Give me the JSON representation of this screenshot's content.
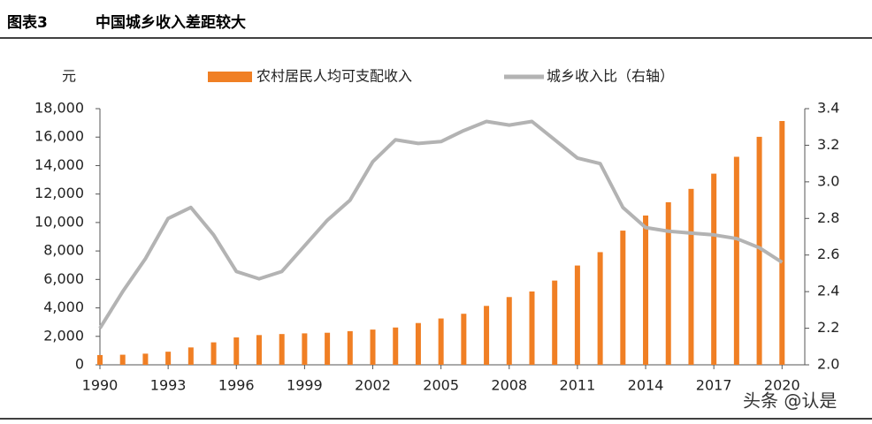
{
  "header": {
    "label": "图表3",
    "title": "中国城乡收入差距较大"
  },
  "watermark": "头条 @认是",
  "chart_data": {
    "type": "bar_line",
    "y_unit": "元",
    "x": [
      1990,
      1991,
      1992,
      1993,
      1994,
      1995,
      1996,
      1997,
      1998,
      1999,
      2000,
      2001,
      2002,
      2003,
      2004,
      2005,
      2006,
      2007,
      2008,
      2009,
      2010,
      2011,
      2012,
      2013,
      2014,
      2015,
      2016,
      2017,
      2018,
      2019,
      2020
    ],
    "xlim": [
      1990,
      2021
    ],
    "xticks": [
      1990,
      1993,
      1996,
      1999,
      2002,
      2005,
      2008,
      2011,
      2014,
      2017,
      2020
    ],
    "series": [
      {
        "name": "农村居民人均可支配收入",
        "color": "#f07f24",
        "kind": "bar",
        "values": [
          686,
          709,
          784,
          922,
          1221,
          1578,
          1926,
          2090,
          2162,
          2210,
          2253,
          2366,
          2476,
          2622,
          2936,
          3255,
          3587,
          4140,
          4761,
          5153,
          5919,
          6977,
          7917,
          9430,
          10489,
          11422,
          12363,
          13432,
          14617,
          16021,
          17131
        ]
      },
      {
        "name": "城乡收入比（右轴）",
        "color": "#b3b3b3",
        "kind": "line",
        "axis": "y2",
        "values": [
          2.2,
          2.4,
          2.58,
          2.8,
          2.86,
          2.71,
          2.51,
          2.47,
          2.51,
          2.65,
          2.79,
          2.9,
          3.11,
          3.23,
          3.21,
          3.22,
          3.28,
          3.33,
          3.31,
          3.33,
          3.23,
          3.13,
          3.1,
          2.86,
          2.75,
          2.73,
          2.72,
          2.71,
          2.69,
          2.64,
          2.56
        ]
      }
    ],
    "ylim": [
      0,
      18000
    ],
    "yticks": [
      0,
      {
        "value": 2000,
        "label": "2,000"
      },
      {
        "value": 4000,
        "label": "4,000"
      },
      {
        "value": 6000,
        "label": "6,000"
      },
      {
        "value": 8000,
        "label": "8,000"
      },
      {
        "value": 10000,
        "label": "10,000"
      },
      {
        "value": 12000,
        "label": "12,000"
      },
      {
        "value": 14000,
        "label": "14,000"
      },
      {
        "value": 16000,
        "label": "16,000"
      },
      {
        "value": 18000,
        "label": "18,000"
      }
    ],
    "y2lim": [
      2,
      3.4
    ],
    "y2ticks": [
      {
        "value": 2,
        "label": "2.0"
      },
      {
        "value": 2.2,
        "label": "2.2"
      },
      {
        "value": 2.4,
        "label": "2.4"
      },
      {
        "value": 2.6,
        "label": "2.6"
      },
      {
        "value": 2.8,
        "label": "2.8"
      },
      {
        "value": 3,
        "label": "3.0"
      },
      {
        "value": 3.2,
        "label": "3.2"
      },
      {
        "value": 3.4,
        "label": "3.4"
      }
    ]
  }
}
